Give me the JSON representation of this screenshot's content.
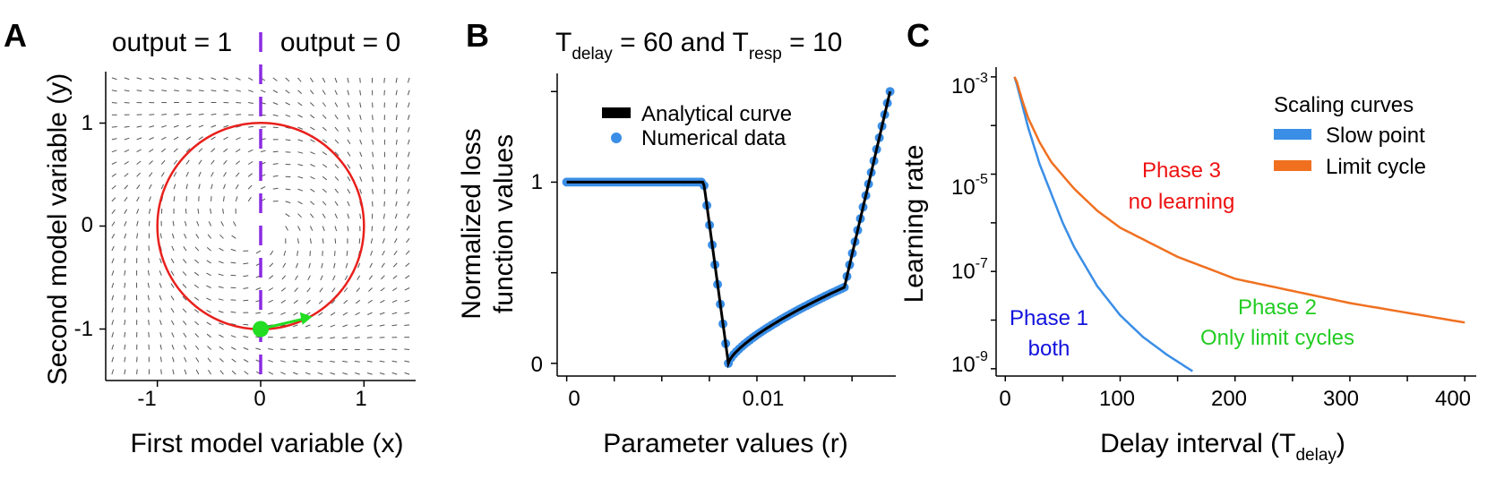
{
  "panels": {
    "A": {
      "letter": "A",
      "left_title": "output = 1",
      "right_title": "output = 0",
      "xlabel": "First model variable (x)",
      "ylabel": "Second model variable (y)",
      "xticks": [
        "-1",
        "0",
        "1"
      ],
      "yticks": [
        "1",
        "0",
        "-1"
      ],
      "colors": {
        "circle": "#e8201c",
        "divider": "#8a2be2",
        "point": "#22dd22",
        "field": "#555555"
      }
    },
    "B": {
      "letter": "B",
      "title_parts": {
        "t1": "T",
        "sub1": "delay",
        "mid": " = 60 and T",
        "sub2": "resp",
        "end": " = 10"
      },
      "xlabel": "Parameter values (r)",
      "ylabel_line1": "Normalized loss",
      "ylabel_line2": "function values",
      "xticks": [
        "0",
        "0.01"
      ],
      "yticks": [
        "1",
        "0"
      ],
      "legend": {
        "analytical": "Analytical curve",
        "numerical": "Numerical data"
      },
      "colors": {
        "analytical": "#000000",
        "numerical": "#3a8ee6"
      }
    },
    "C": {
      "letter": "C",
      "xlabel_main": "Delay interval (T",
      "xlabel_sub": "delay",
      "xlabel_end": ")",
      "ylabel": "Learning rate",
      "xticks": [
        "0",
        "100",
        "200",
        "300",
        "400"
      ],
      "yticks": [
        {
          "base": "10",
          "exp": "-3"
        },
        {
          "base": "10",
          "exp": "-5"
        },
        {
          "base": "10",
          "exp": "-7"
        },
        {
          "base": "10",
          "exp": "-9"
        }
      ],
      "legend": {
        "title": "Scaling curves",
        "slow": "Slow point",
        "limit": "Limit cycle"
      },
      "phase3": {
        "line1": "Phase 3",
        "line2": "no learning"
      },
      "phase2": {
        "line1": "Phase 2",
        "line2": "Only limit cycles"
      },
      "phase1": {
        "line1": "Phase 1",
        "line2": "both"
      },
      "colors": {
        "slow": "#3a8ee6",
        "limit": "#f07020",
        "phase3": "#ee1111",
        "phase2": "#22cc22",
        "phase1": "#1111dd"
      }
    }
  },
  "chart_data": [
    {
      "type": "scatter",
      "title": "output = 1 | output = 0",
      "xlabel": "First model variable (x)",
      "ylabel": "Second model variable (y)",
      "xlim": [
        -1.5,
        1.5
      ],
      "ylim": [
        -1.5,
        1.5
      ],
      "limit_cycle_radius": 1.0,
      "divider_x": 0,
      "point": {
        "x": 0,
        "y": -1
      },
      "arrow_end": {
        "x": 0.5,
        "y": -0.88
      }
    },
    {
      "type": "line",
      "title": "Tdelay = 60 and Tresp = 10",
      "xlabel": "Parameter values (r)",
      "ylabel": "Normalized loss function values",
      "xlim": [
        -0.0005,
        0.0173
      ],
      "ylim": [
        -0.07,
        1.6
      ],
      "series": [
        {
          "name": "Analytical curve",
          "x": [
            0,
            0.0072,
            0.0085,
            0.0146,
            0.017
          ],
          "y": [
            1,
            1,
            0,
            0.42,
            1.5
          ]
        },
        {
          "name": "Numerical data",
          "x": [
            0,
            0.0072,
            0.0085,
            0.0146,
            0.017
          ],
          "y": [
            1,
            1,
            0,
            0.42,
            1.5
          ]
        }
      ]
    },
    {
      "type": "line",
      "title": "",
      "xlabel": "Delay interval (Tdelay)",
      "ylabel": "Learning rate",
      "yscale": "log",
      "xlim": [
        -8,
        410
      ],
      "ylim_log10": [
        -9.15,
        -2.8
      ],
      "series": [
        {
          "name": "Slow point",
          "x": [
            8,
            10,
            15,
            20,
            30,
            40,
            50,
            60,
            80,
            100,
            120,
            140,
            163
          ],
          "log10_y": [
            -3.0,
            -3.15,
            -3.6,
            -4.05,
            -4.8,
            -5.4,
            -6.0,
            -6.5,
            -7.3,
            -7.9,
            -8.35,
            -8.7,
            -9.05
          ]
        },
        {
          "name": "Limit cycle",
          "x": [
            8,
            10,
            15,
            20,
            30,
            40,
            60,
            80,
            100,
            150,
            200,
            250,
            300,
            350,
            400
          ],
          "log10_y": [
            -3.0,
            -3.1,
            -3.5,
            -3.85,
            -4.35,
            -4.75,
            -5.3,
            -5.75,
            -6.1,
            -6.7,
            -7.15,
            -7.4,
            -7.65,
            -7.85,
            -8.05
          ]
        }
      ]
    }
  ]
}
